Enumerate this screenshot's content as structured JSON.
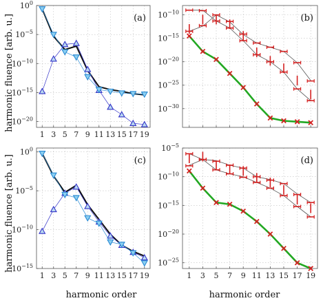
{
  "figure": {
    "ylabel": "harmonic fluence [arb. u.]",
    "xlabel": "harmonic order"
  },
  "chart_data": [
    {
      "panel_label": "(a)",
      "type": "line",
      "yscale": "log",
      "ylim_exp": [
        -21,
        0
      ],
      "yticks_exp": [
        0,
        -5,
        -10,
        -15,
        -20
      ],
      "xlim": [
        0,
        20
      ],
      "xticks": [
        1,
        3,
        5,
        7,
        9,
        11,
        13,
        15,
        17,
        19
      ],
      "show_xticklabels": true,
      "show_yticklabels": true,
      "grid": true,
      "x": [
        1,
        3,
        5,
        7,
        9,
        11,
        13,
        15,
        17,
        19
      ],
      "series": [
        {
          "style": "total",
          "color": "#111111",
          "marker": "none",
          "values_exp": [
            -0.6,
            -5.3,
            -7.6,
            -7.0,
            -11.2,
            -14.0,
            -14.5,
            -14.8,
            -15.2,
            -15.4
          ]
        },
        {
          "style": "up-triangle",
          "color": "#3434c8",
          "fill": "#b8d8f0",
          "marker": "triangle-up",
          "values_exp": [
            -14.8,
            -9.2,
            -6.7,
            -6.5,
            -11.0,
            -14.6,
            -17.5,
            -18.8,
            -20.3,
            -20.5
          ]
        },
        {
          "style": "down-triangle",
          "color": "#2a8ad4",
          "fill": "#8ccff0",
          "marker": "triangle-down",
          "values_exp": [
            -0.6,
            -5.0,
            -8.0,
            -8.9,
            -12.3,
            -14.5,
            -14.8,
            -15.1,
            -15.2,
            -15.3
          ]
        }
      ]
    },
    {
      "panel_label": "(b)",
      "type": "line",
      "yscale": "log",
      "ylim_exp": [
        -34,
        -8
      ],
      "yticks_exp": [
        -10,
        -15,
        -20,
        -25,
        -30
      ],
      "xlim": [
        0,
        20
      ],
      "xticks": [
        1,
        3,
        5,
        7,
        9,
        11,
        13,
        15,
        17,
        19
      ],
      "show_xticklabels": false,
      "show_yticklabels": true,
      "grid": true,
      "x": [
        1,
        3,
        5,
        7,
        9,
        11,
        13,
        15,
        17,
        19
      ],
      "series": [
        {
          "style": "thin",
          "color": "#555555",
          "marker": "none",
          "values_exp": [
            -9.0,
            -9.0,
            -11.3,
            -12.8,
            -15.5,
            -18.5,
            -20.0,
            -22.2,
            -25.8,
            -28.3
          ]
        },
        {
          "style": "thin",
          "color": "#555555",
          "marker": "none",
          "values_exp": [
            -13.5,
            -12.4,
            -10.0,
            -11.5,
            -14.2,
            -16.0,
            -16.9,
            -17.8,
            -20.2,
            -24.0
          ]
        },
        {
          "style": "error-hbar",
          "color": "#d42020",
          "marker": "hbar",
          "values_exp": [
            -9.0,
            -9.1,
            -11.3,
            -12.8,
            -15.5,
            -18.5,
            -20.0,
            -22.2,
            -25.8,
            -28.3
          ]
        },
        {
          "style": "error-hbar",
          "color": "#d42020",
          "marker": "hbar",
          "values_exp": [
            -13.5,
            -12.3,
            -10.0,
            -11.4,
            -14.1,
            -16.0,
            -16.9,
            -17.8,
            -20.2,
            -24.1
          ]
        },
        {
          "style": "error-vbar",
          "color": "#d42020",
          "marker": "vbar",
          "values_exp": [
            -13.0,
            -11.0,
            -11.0,
            -12.0,
            -14.5,
            -18.0,
            -19.8,
            -21.4,
            -24.0,
            -27.0
          ]
        },
        {
          "style": "green-x",
          "color": "#22a822",
          "marker_color": "#d42020",
          "marker": "x",
          "values_exp": [
            -14.5,
            -17.8,
            -19.5,
            -22.5,
            -25.5,
            -29.0,
            -32.0,
            -32.6,
            -32.8,
            -33.0
          ]
        }
      ]
    },
    {
      "panel_label": "(c)",
      "type": "line",
      "yscale": "log",
      "ylim_exp": [
        -15,
        0.5
      ],
      "yticks_exp": [
        0,
        -5,
        -10,
        -15
      ],
      "xlim": [
        0,
        20
      ],
      "xticks": [
        1,
        3,
        5,
        7,
        9,
        11,
        13,
        15,
        17,
        19
      ],
      "show_xticklabels": true,
      "show_yticklabels": true,
      "grid": true,
      "x": [
        1,
        3,
        5,
        7,
        9,
        11,
        13,
        15,
        17,
        19
      ],
      "series": [
        {
          "style": "total",
          "color": "#111111",
          "marker": "none",
          "values_exp": [
            -0.2,
            -3.1,
            -5.2,
            -4.3,
            -6.8,
            -8.7,
            -10.6,
            -12.0,
            -12.8,
            -13.4
          ]
        },
        {
          "style": "up-triangle",
          "color": "#3434c8",
          "fill": "#b8d8f0",
          "marker": "triangle-up",
          "values_exp": [
            -10.2,
            -7.4,
            -5.3,
            -4.5,
            -7.0,
            -9.0,
            -10.8,
            -12.0,
            -12.9,
            -13.6
          ]
        },
        {
          "style": "down-triangle",
          "color": "#2a8ad4",
          "fill": "#8ccff0",
          "marker": "triangle-down",
          "values_exp": [
            -0.2,
            -3.0,
            -5.5,
            -5.9,
            -8.5,
            -9.2,
            -11.6,
            -11.9,
            -13.0,
            -14.3
          ]
        }
      ]
    },
    {
      "panel_label": "(d)",
      "type": "line",
      "yscale": "log",
      "ylim_exp": [
        -26,
        -5
      ],
      "yticks_exp": [
        -5,
        -10,
        -15,
        -20,
        -25
      ],
      "xlim": [
        0,
        20
      ],
      "xticks": [
        1,
        3,
        5,
        7,
        9,
        11,
        13,
        15,
        17,
        19
      ],
      "show_xticklabels": true,
      "show_yticklabels": true,
      "grid": true,
      "x": [
        1,
        3,
        5,
        7,
        9,
        11,
        13,
        15,
        17,
        19
      ],
      "series": [
        {
          "style": "thin",
          "color": "#555555",
          "marker": "none",
          "values_exp": [
            -6.0,
            -7.0,
            -7.2,
            -8.0,
            -8.5,
            -10.0,
            -10.5,
            -11.2,
            -13.0,
            -14.5
          ]
        },
        {
          "style": "thin",
          "color": "#555555",
          "marker": "none",
          "values_exp": [
            -8.0,
            -7.0,
            -8.8,
            -9.5,
            -10.0,
            -11.0,
            -12.0,
            -13.3,
            -15.2,
            -17.0
          ]
        },
        {
          "style": "error-hbar",
          "color": "#d42020",
          "marker": "hbar",
          "values_exp": [
            -6.0,
            -7.0,
            -7.3,
            -8.0,
            -8.5,
            -10.0,
            -10.6,
            -11.2,
            -13.1,
            -14.5
          ]
        },
        {
          "style": "error-hbar",
          "color": "#d42020",
          "marker": "hbar",
          "values_exp": [
            -8.1,
            -7.0,
            -8.8,
            -9.5,
            -10.1,
            -11.0,
            -12.0,
            -13.3,
            -15.2,
            -17.0
          ]
        },
        {
          "style": "error-vbar",
          "color": "#d42020",
          "marker": "vbar",
          "values_exp": [
            -6.8,
            -6.5,
            -8.0,
            -8.7,
            -9.0,
            -10.2,
            -11.0,
            -12.3,
            -14.0,
            -15.5
          ]
        },
        {
          "style": "green-x",
          "color": "#22a822",
          "marker_color": "#d42020",
          "marker": "x",
          "values_exp": [
            -9.0,
            -12.0,
            -14.5,
            -14.8,
            -16.0,
            -17.8,
            -20.0,
            -22.5,
            -25.0,
            -26.0
          ]
        }
      ]
    }
  ]
}
